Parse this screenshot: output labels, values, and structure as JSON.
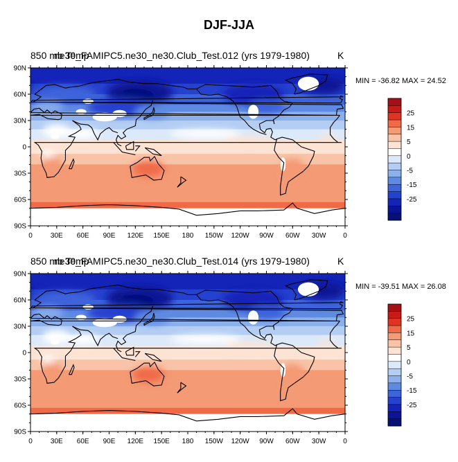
{
  "title": "DJF-JJA",
  "panels": [
    {
      "variable": "850 mb Temp",
      "case": "ne30_FAMIPC5.ne30_ne30.Club_Test.012 (yrs 1979-1980)",
      "units": "K",
      "minmax": "MIN = -36.82 MAX =  24.52"
    },
    {
      "variable": "850 mb Temp",
      "case": "ne30_FAMIPC5.ne30_ne30.Club_Test.014 (yrs 1979-1980)",
      "units": "K",
      "minmax": "MIN = -39.51 MAX = 26.08"
    }
  ],
  "lat_ticks": [
    "90N",
    "60N",
    "30N",
    "0",
    "30S",
    "60S",
    "90S"
  ],
  "lon_ticks": [
    "0",
    "30E",
    "60E",
    "90E",
    "120E",
    "150E",
    "180",
    "150W",
    "120W",
    "90W",
    "60W",
    "30W",
    "0"
  ],
  "colorbar": {
    "labels": [
      "25",
      "15",
      "5",
      "0",
      "-5",
      "-15",
      "-25"
    ],
    "colors": [
      "#a50f15",
      "#c81b16",
      "#e03422",
      "#f06a48",
      "#f49a74",
      "#f9c3a7",
      "#fde3d4",
      "#ffffff",
      "#dce9fa",
      "#b3cdf3",
      "#8bb0ec",
      "#5f8ae2",
      "#3d64da",
      "#2541cf",
      "#1424b8",
      "#0a1496",
      "#061077"
    ]
  }
}
